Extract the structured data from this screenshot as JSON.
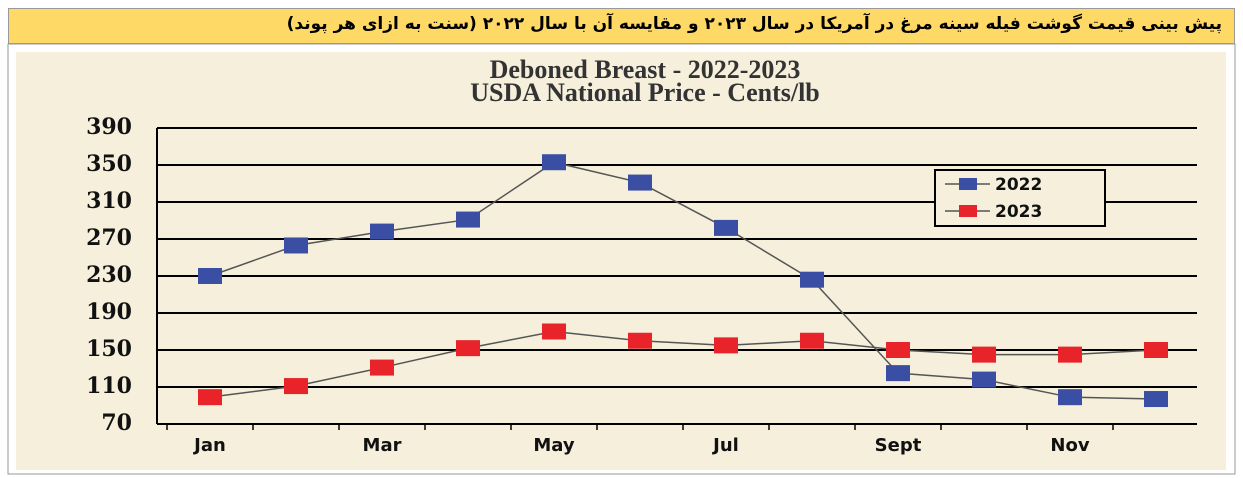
{
  "caption": "پیش بینی قیمت گوشت فیله سینه مرغ در آمریکا در سال ۲۰۲۳ و  مقایسه آن با سال ۲۰۲۲ (سنت به ازای هر پوند)",
  "chart_data": {
    "type": "line",
    "title": "Deboned Breast - 2022-2023",
    "subtitle": "USDA National Price - Cents/lb",
    "categories": [
      "Jan",
      null,
      "Mar",
      null,
      "May",
      null,
      "Jul",
      null,
      "Sept",
      null,
      "Nov",
      null
    ],
    "series": [
      {
        "name": "2022",
        "color": "#3a4fa3",
        "values": [
          230,
          263,
          278,
          291,
          353,
          331,
          282,
          226,
          125,
          118,
          99,
          97
        ]
      },
      {
        "name": "2023",
        "color": "#e8232a",
        "values": [
          99,
          111,
          131,
          152,
          170,
          160,
          155,
          160,
          150,
          145,
          145,
          150
        ]
      }
    ],
    "ylim": [
      70,
      390
    ],
    "yticks": [
      70,
      110,
      150,
      190,
      230,
      270,
      310,
      350,
      390
    ],
    "grid": true,
    "legend": "upper right",
    "line_color": "#555555"
  }
}
